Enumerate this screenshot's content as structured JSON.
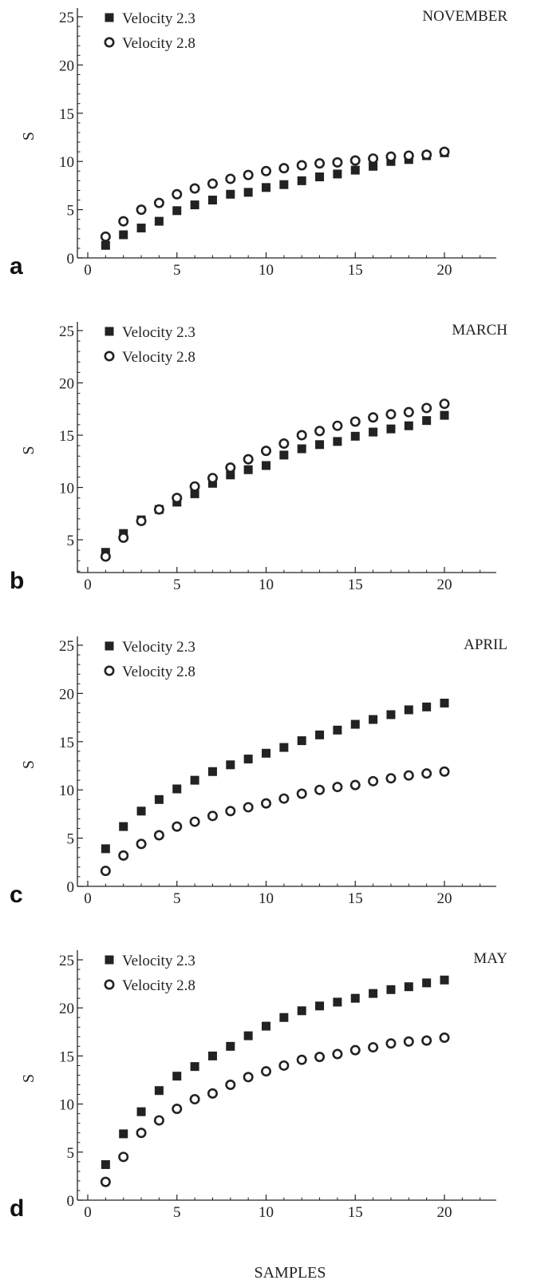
{
  "chart_data": [
    {
      "type": "scatter",
      "panel": "a",
      "title": "NOVEMBER",
      "ylabel": "S",
      "xlabel": "",
      "xlim": [
        0,
        23
      ],
      "ylim": [
        0,
        26
      ],
      "xticks": [
        0,
        5,
        10,
        15,
        20
      ],
      "yticks": [
        0,
        5,
        10,
        15,
        20,
        25
      ],
      "legend": "top-left",
      "series": [
        {
          "name": "Velocity 2.3",
          "marker": "filled-square",
          "x": [
            1,
            2,
            3,
            4,
            5,
            6,
            7,
            8,
            9,
            10,
            11,
            12,
            13,
            14,
            15,
            16,
            17,
            18,
            19,
            20
          ],
          "y": [
            1.3,
            2.4,
            3.1,
            3.8,
            4.9,
            5.5,
            6.0,
            6.6,
            6.8,
            7.3,
            7.6,
            8.0,
            8.4,
            8.7,
            9.1,
            9.5,
            10.0,
            10.2,
            10.6,
            10.9
          ]
        },
        {
          "name": "Velocity 2.8",
          "marker": "open-circle",
          "x": [
            1,
            2,
            3,
            4,
            5,
            6,
            7,
            8,
            9,
            10,
            11,
            12,
            13,
            14,
            15,
            16,
            17,
            18,
            19,
            20
          ],
          "y": [
            2.2,
            3.8,
            5.0,
            5.7,
            6.6,
            7.2,
            7.7,
            8.2,
            8.6,
            9.0,
            9.3,
            9.6,
            9.8,
            9.9,
            10.1,
            10.3,
            10.5,
            10.6,
            10.7,
            11.0
          ]
        }
      ]
    },
    {
      "type": "scatter",
      "panel": "b",
      "title": "MARCH",
      "ylabel": "S",
      "xlabel": "",
      "xlim": [
        0,
        23
      ],
      "ylim": [
        2,
        26
      ],
      "xticks": [
        0,
        5,
        10,
        15,
        20
      ],
      "yticks": [
        5,
        10,
        15,
        20,
        25
      ],
      "legend": "top-left",
      "series": [
        {
          "name": "Velocity 2.3",
          "marker": "filled-square",
          "x": [
            1,
            2,
            3,
            4,
            5,
            6,
            7,
            8,
            9,
            10,
            11,
            12,
            13,
            14,
            15,
            16,
            17,
            18,
            19,
            20
          ],
          "y": [
            3.8,
            5.6,
            6.9,
            7.9,
            8.6,
            9.4,
            10.4,
            11.2,
            11.7,
            12.1,
            13.1,
            13.7,
            14.1,
            14.4,
            14.9,
            15.3,
            15.6,
            15.9,
            16.4,
            16.9
          ]
        },
        {
          "name": "Velocity 2.8",
          "marker": "open-circle",
          "x": [
            1,
            2,
            3,
            4,
            5,
            6,
            7,
            8,
            9,
            10,
            11,
            12,
            13,
            14,
            15,
            16,
            17,
            18,
            19,
            20
          ],
          "y": [
            3.4,
            5.2,
            6.8,
            7.9,
            9.0,
            10.1,
            10.9,
            11.9,
            12.7,
            13.5,
            14.2,
            15.0,
            15.4,
            15.9,
            16.3,
            16.7,
            17.0,
            17.2,
            17.6,
            18.0
          ]
        }
      ]
    },
    {
      "type": "scatter",
      "panel": "c",
      "title": "APRIL",
      "ylabel": "S",
      "xlabel": "",
      "xlim": [
        0,
        23
      ],
      "ylim": [
        0,
        26
      ],
      "xticks": [
        0,
        5,
        10,
        15,
        20
      ],
      "yticks": [
        0,
        5,
        10,
        15,
        20,
        25
      ],
      "legend": "top-left",
      "series": [
        {
          "name": "Velocity 2.3",
          "marker": "filled-square",
          "x": [
            1,
            2,
            3,
            4,
            5,
            6,
            7,
            8,
            9,
            10,
            11,
            12,
            13,
            14,
            15,
            16,
            17,
            18,
            19,
            20
          ],
          "y": [
            3.9,
            6.2,
            7.8,
            9.0,
            10.1,
            11.0,
            11.9,
            12.6,
            13.2,
            13.8,
            14.4,
            15.1,
            15.7,
            16.2,
            16.8,
            17.3,
            17.8,
            18.3,
            18.6,
            19.0
          ]
        },
        {
          "name": "Velocity 2.8",
          "marker": "open-circle",
          "x": [
            1,
            2,
            3,
            4,
            5,
            6,
            7,
            8,
            9,
            10,
            11,
            12,
            13,
            14,
            15,
            16,
            17,
            18,
            19,
            20
          ],
          "y": [
            1.6,
            3.2,
            4.4,
            5.3,
            6.2,
            6.7,
            7.3,
            7.8,
            8.2,
            8.6,
            9.1,
            9.6,
            10.0,
            10.3,
            10.5,
            10.9,
            11.2,
            11.5,
            11.7,
            11.9
          ]
        }
      ]
    },
    {
      "type": "scatter",
      "panel": "d",
      "title": "MAY",
      "ylabel": "S",
      "xlabel": "SAMPLES",
      "xlim": [
        0,
        23
      ],
      "ylim": [
        0,
        26
      ],
      "xticks": [
        0,
        5,
        10,
        15,
        20
      ],
      "yticks": [
        0,
        5,
        10,
        15,
        20,
        25
      ],
      "legend": "top-left",
      "series": [
        {
          "name": "Velocity 2.3",
          "marker": "filled-square",
          "x": [
            1,
            2,
            3,
            4,
            5,
            6,
            7,
            8,
            9,
            10,
            11,
            12,
            13,
            14,
            15,
            16,
            17,
            18,
            19,
            20
          ],
          "y": [
            3.7,
            6.9,
            9.2,
            11.4,
            12.9,
            13.9,
            15.0,
            16.0,
            17.1,
            18.1,
            19.0,
            19.7,
            20.2,
            20.6,
            21.0,
            21.5,
            21.9,
            22.2,
            22.6,
            22.9
          ]
        },
        {
          "name": "Velocity 2.8",
          "marker": "open-circle",
          "x": [
            1,
            2,
            3,
            4,
            5,
            6,
            7,
            8,
            9,
            10,
            11,
            12,
            13,
            14,
            15,
            16,
            17,
            18,
            19,
            20
          ],
          "y": [
            1.9,
            4.5,
            7.0,
            8.3,
            9.5,
            10.5,
            11.1,
            12.0,
            12.8,
            13.4,
            14.0,
            14.6,
            14.9,
            15.2,
            15.6,
            15.9,
            16.3,
            16.5,
            16.6,
            16.9
          ]
        }
      ]
    }
  ]
}
